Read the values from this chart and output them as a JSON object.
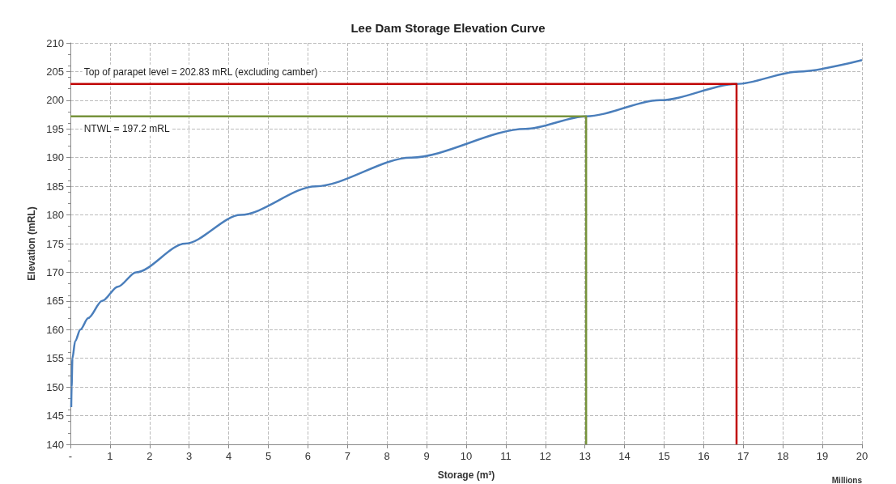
{
  "chart_data": {
    "type": "line",
    "title": "Lee Dam Storage Elevation Curve",
    "xlabel": "Storage (m³)",
    "ylabel": "Elevation (mRL)",
    "series": [
      {
        "color": "#4a7ebb",
        "x": [
          0.02,
          0.03,
          0.05,
          0.12,
          0.25,
          0.45,
          0.8,
          1.2,
          1.66,
          2.9,
          4.3,
          6.2,
          8.6,
          11.5,
          13.03,
          14.9,
          16.83,
          18.4,
          20
        ],
        "values": [
          146.5,
          150,
          155,
          158,
          160,
          162,
          165,
          167.5,
          170,
          175,
          180,
          185,
          190,
          195,
          197.2,
          200,
          202.83,
          205,
          207
        ]
      },
      {
        "color": "#c00000",
        "x": [
          0,
          16.83,
          16.83
        ],
        "values": [
          202.83,
          202.83,
          140
        ]
      },
      {
        "color": "#77933c",
        "x": [
          0,
          13.03,
          13.03
        ],
        "values": [
          197.2,
          197.2,
          140
        ]
      }
    ],
    "xlim": [
      0,
      20
    ],
    "xticks": [
      {
        "value": 0,
        "label": "-"
      },
      1,
      2,
      3,
      4,
      5,
      6,
      7,
      8,
      9,
      10,
      11,
      12,
      13,
      14,
      15,
      16,
      17,
      18,
      19,
      20
    ],
    "ylim": [
      140,
      210
    ],
    "yticks": [
      140,
      145,
      150,
      155,
      160,
      165,
      170,
      175,
      180,
      185,
      190,
      195,
      200,
      205,
      210
    ],
    "grid": true,
    "marker": "none",
    "line_style": "solid",
    "annotations": [
      {
        "text": "Top of parapet level = 202.83 mRL (excluding camber)",
        "x": 0.3,
        "y": 202.83
      },
      {
        "text": "NTWL = 197.2 mRL",
        "x": 0.3,
        "y": 197.2
      },
      "Millions"
    ]
  }
}
